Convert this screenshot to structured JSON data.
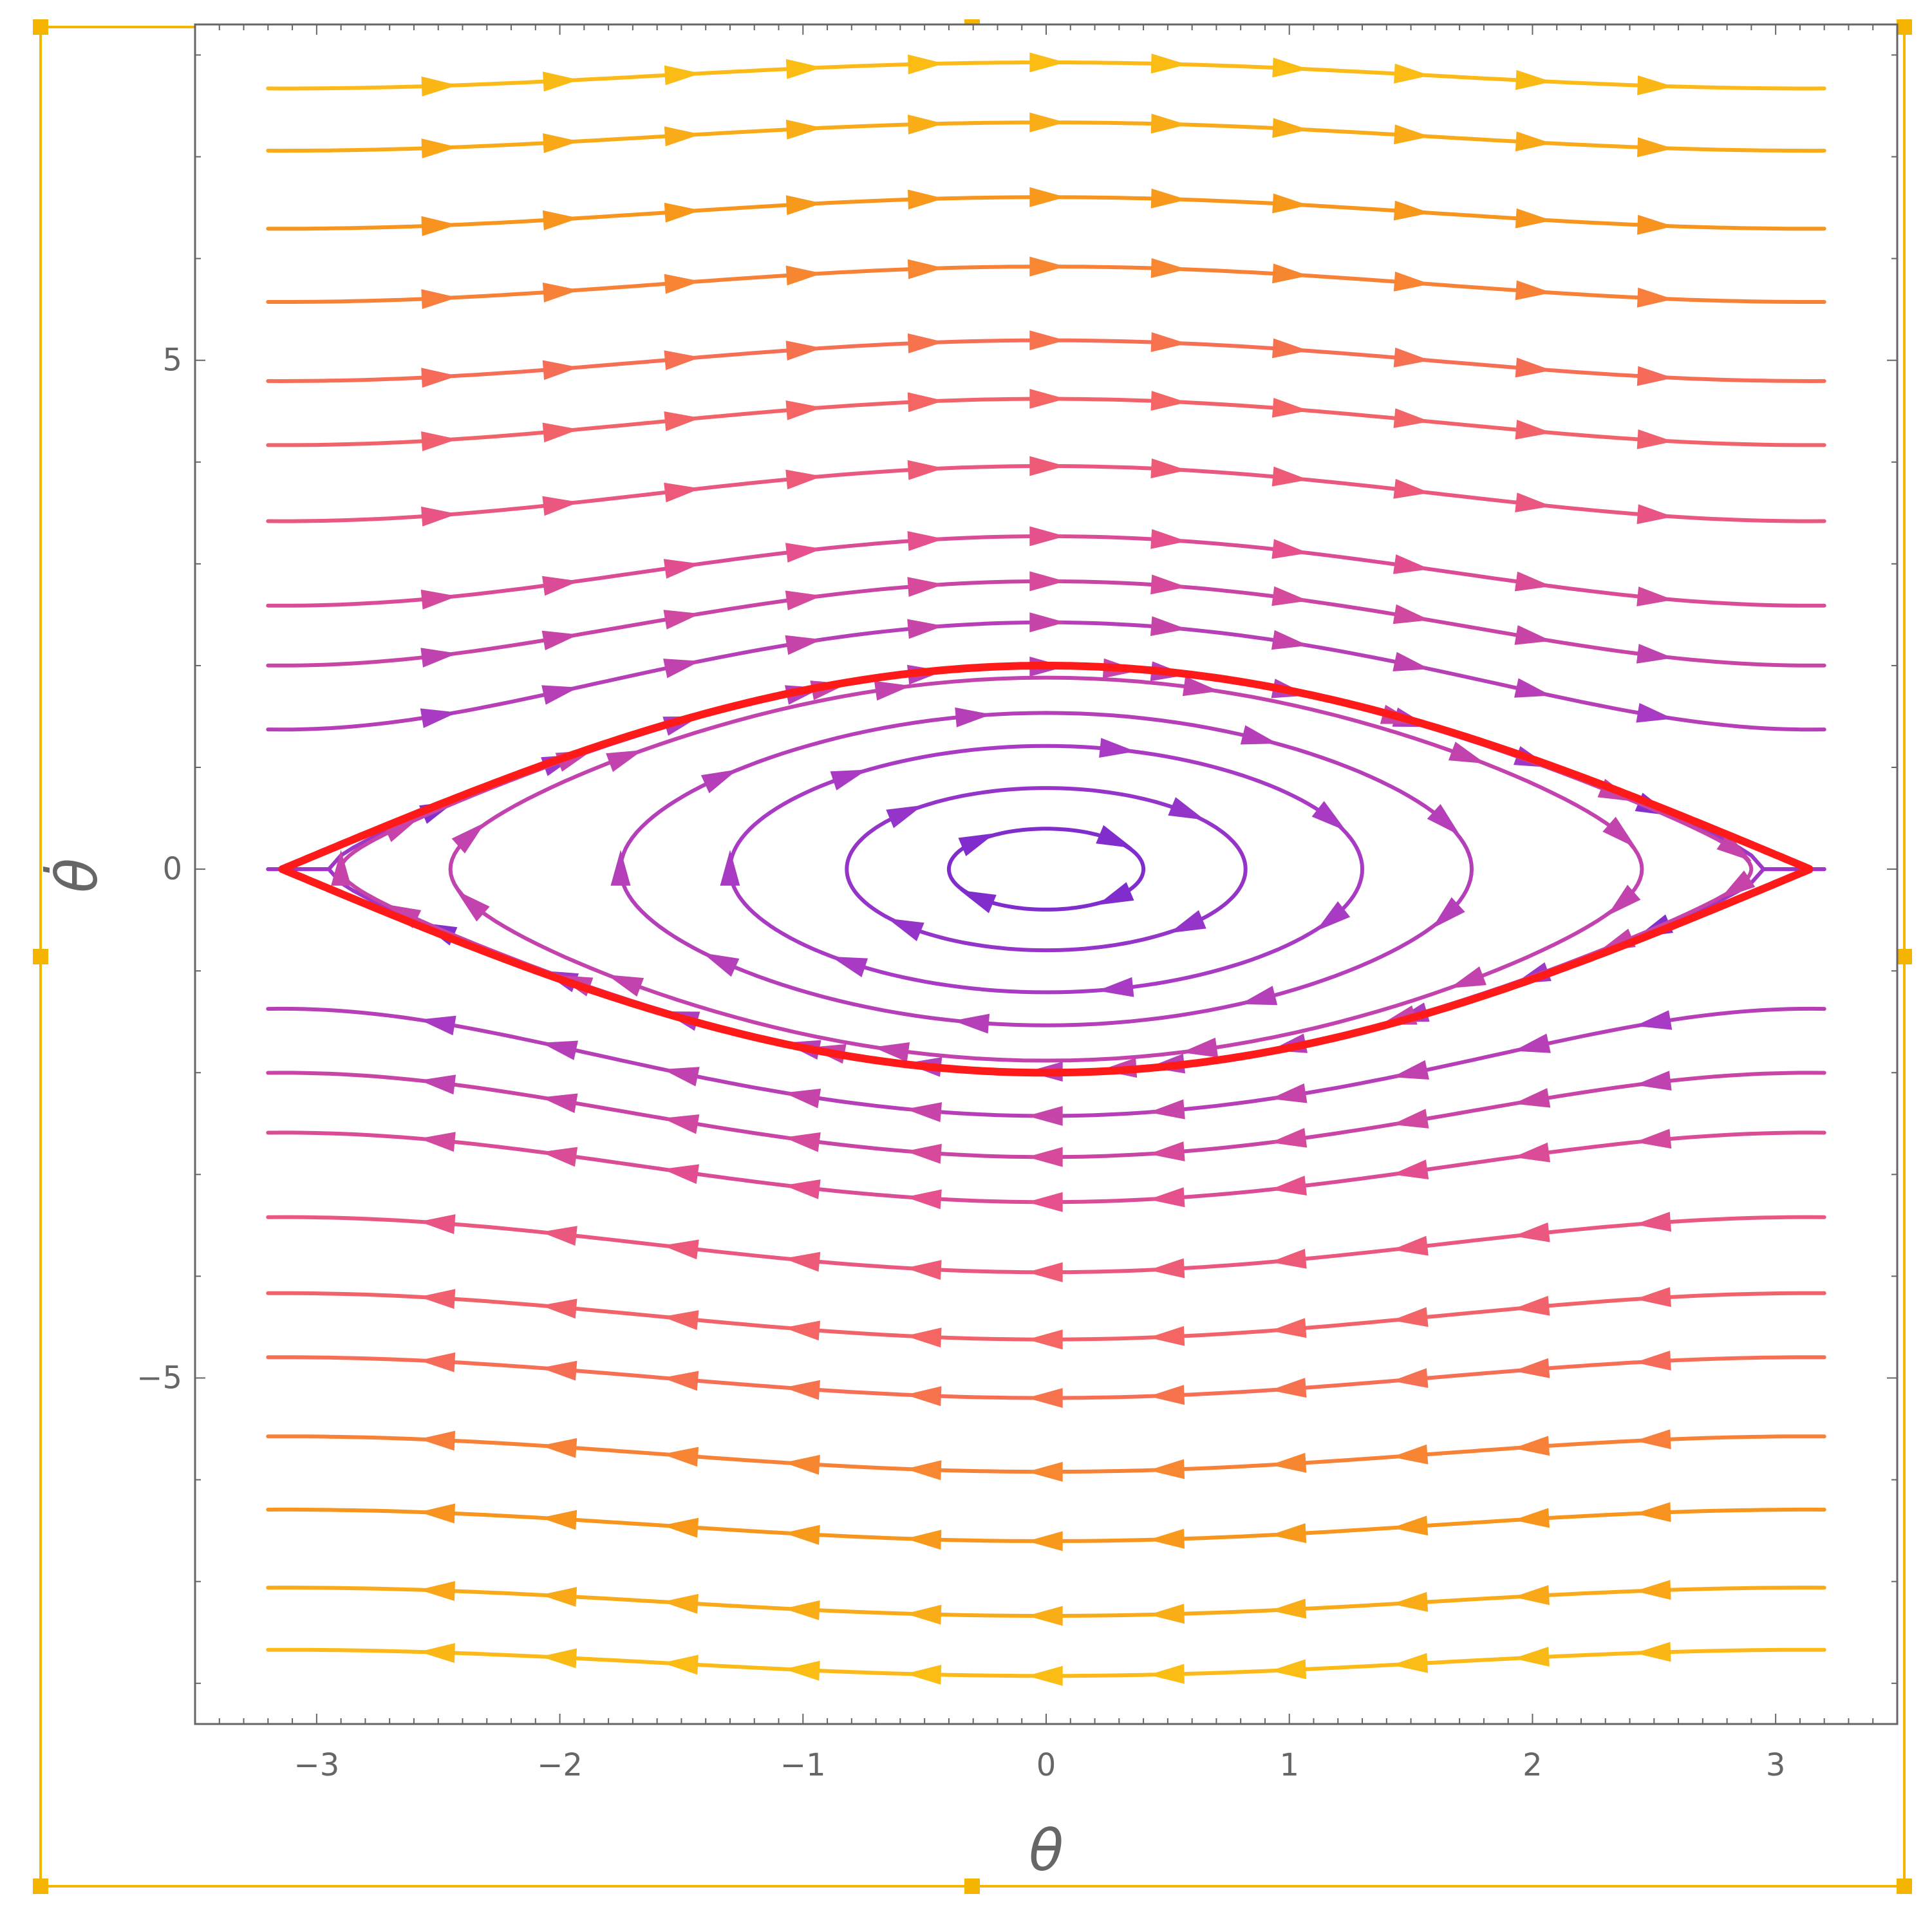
{
  "selection_frame": {
    "color": "#f5b400",
    "handles": 8
  },
  "chart_data": {
    "type": "stream",
    "system": {
      "x_dot": "y",
      "y_dot": "-sin(x)"
    },
    "xlabel": "θ",
    "ylabel": "θ̇",
    "xlim": [
      -3.5,
      3.5
    ],
    "ylim": [
      -8.4,
      8.3
    ],
    "xticks": [
      -3,
      -2,
      -1,
      0,
      1,
      2,
      3
    ],
    "xtick_labels": [
      "−3",
      "−2",
      "−1",
      "0",
      "1",
      "2",
      "3"
    ],
    "yticks": [
      -5,
      0,
      5
    ],
    "ytick_labels": [
      "−5",
      "0",
      "5"
    ],
    "grid": false,
    "colormap": [
      "#5b21d6",
      "#a83ac4",
      "#e54f8e",
      "#f6685e",
      "#f7941c",
      "#fbbf14"
    ],
    "separatrix": {
      "color": "#ff1a1a",
      "energy": 2,
      "x_range": [
        -3.1416,
        3.1416
      ],
      "y_peak": 2
    },
    "closed_orbits_amplitude": [
      0.4,
      0.82,
      1.3,
      1.75,
      2.45,
      2.9
    ],
    "open_streams_y": [
      1.4,
      1.97,
      2.45,
      2.95,
      3.7,
      4.4,
      5.0,
      5.75,
      6.45,
      7.2,
      7.8
    ]
  }
}
